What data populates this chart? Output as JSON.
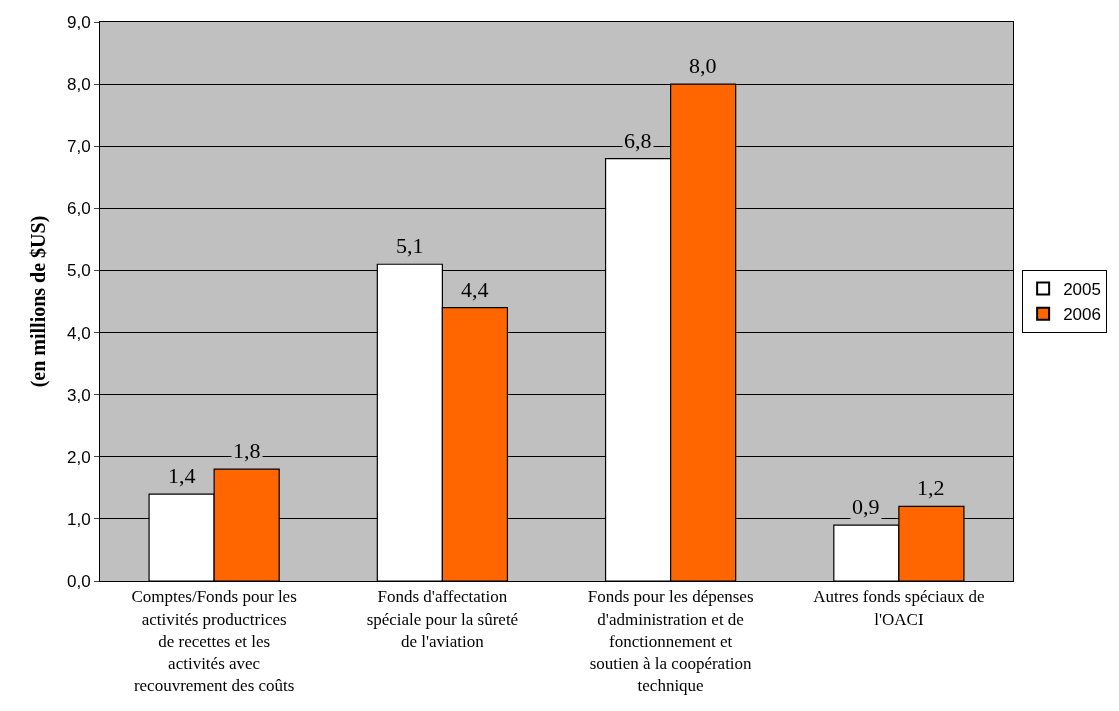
{
  "chart_data": {
    "type": "bar",
    "ylabel": "(en millions de $US)",
    "categories": [
      "Comptes/Fonds pour les activités productrices de recettes et les activités avec recouvrement des coûts",
      "Fonds d'affectation spéciale pour la sûreté de l'aviation",
      "Fonds pour les dépenses d'administration et de fonctionnement et soutien à la coopération technique",
      "Autres fonds spéciaux de l'OACI"
    ],
    "series": [
      {
        "name": "2005",
        "color": "#ffffff",
        "values": [
          1.4,
          5.1,
          6.8,
          0.9
        ],
        "value_labels": [
          "1,4",
          "5,1",
          "6,8",
          "0,9"
        ]
      },
      {
        "name": "2006",
        "color": "#ff6600",
        "values": [
          1.8,
          4.4,
          8.0,
          1.2
        ],
        "value_labels": [
          "1,8",
          "4,4",
          "8,0",
          "1,2"
        ]
      }
    ],
    "ylim": [
      0,
      9
    ],
    "yticks": [
      {
        "value": 0,
        "label": "0,0"
      },
      {
        "value": 1,
        "label": "1,0"
      },
      {
        "value": 2,
        "label": "2,0"
      },
      {
        "value": 3,
        "label": "3,0"
      },
      {
        "value": 4,
        "label": "4,0"
      },
      {
        "value": 5,
        "label": "5,0"
      },
      {
        "value": 6,
        "label": "6,0"
      },
      {
        "value": 7,
        "label": "7,0"
      },
      {
        "value": 8,
        "label": "8,0"
      },
      {
        "value": 9,
        "label": "9,0"
      }
    ],
    "grid": "y",
    "legend": "right"
  }
}
